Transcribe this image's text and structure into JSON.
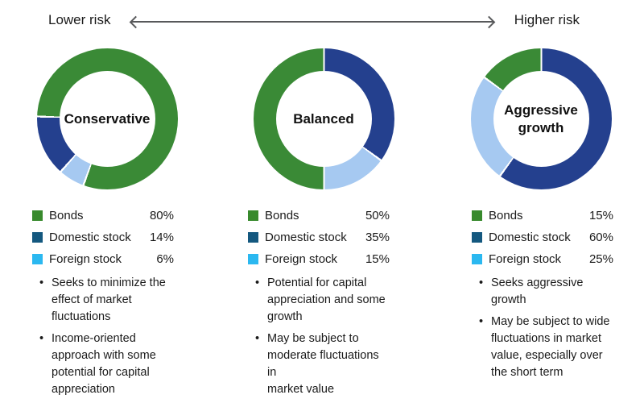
{
  "header": {
    "left_label": "Lower risk",
    "right_label": "Higher risk"
  },
  "bullets_marker": "•",
  "palette": {
    "text": "#1a1a1a",
    "arrow": "#58595b",
    "donut": {
      "bonds": "#3a8a36",
      "domestic": "#24408e",
      "foreign": "#a6c9f1"
    },
    "legend_swatch": {
      "bonds": "#388a2d",
      "domestic": "#14587f",
      "foreign": "#2bb8f0"
    }
  },
  "chart_data": [
    {
      "type": "pie",
      "subtype": "donut",
      "title": "Conservative",
      "categories": [
        "Bonds",
        "Domestic stock",
        "Foreign stock"
      ],
      "values": [
        80,
        14,
        6
      ],
      "legend": [
        {
          "key": "bonds",
          "label": "Bonds",
          "value": "80%"
        },
        {
          "key": "domestic",
          "label": "Domestic stock",
          "value": "14%"
        },
        {
          "key": "foreign",
          "label": "Foreign stock",
          "value": "6%"
        }
      ],
      "start_angle_deg_cw_from_top": 200,
      "clockwise_segments": [
        {
          "key": "foreign",
          "pct": 6
        },
        {
          "key": "domestic",
          "pct": 14
        },
        {
          "key": "bonds",
          "pct": 80
        }
      ],
      "bullets": [
        "Seeks to minimize the\neffect of market\nfluctuations",
        "Income-oriented\napproach with some\npotential for capital\nappreciation"
      ]
    },
    {
      "type": "pie",
      "subtype": "donut",
      "title": "Balanced",
      "categories": [
        "Bonds",
        "Domestic stock",
        "Foreign stock"
      ],
      "values": [
        50,
        35,
        15
      ],
      "legend": [
        {
          "key": "bonds",
          "label": "Bonds",
          "value": "50%"
        },
        {
          "key": "domestic",
          "label": "Domestic stock",
          "value": "35%"
        },
        {
          "key": "foreign",
          "label": "Foreign stock",
          "value": "15%"
        }
      ],
      "start_angle_deg_cw_from_top": 0,
      "clockwise_segments": [
        {
          "key": "domestic",
          "pct": 35
        },
        {
          "key": "foreign",
          "pct": 15
        },
        {
          "key": "bonds",
          "pct": 50
        }
      ],
      "bullets": [
        "Potential for capital\nappreciation and some\ngrowth",
        "May be subject to\nmoderate fluctuations in\nmarket value"
      ]
    },
    {
      "type": "pie",
      "subtype": "donut",
      "title": "Aggressive growth",
      "categories": [
        "Bonds",
        "Domestic stock",
        "Foreign stock"
      ],
      "values": [
        15,
        60,
        25
      ],
      "legend": [
        {
          "key": "bonds",
          "label": "Bonds",
          "value": "15%"
        },
        {
          "key": "domestic",
          "label": "Domestic stock",
          "value": "60%"
        },
        {
          "key": "foreign",
          "label": "Foreign stock",
          "value": "25%"
        }
      ],
      "start_angle_deg_cw_from_top": 0,
      "clockwise_segments": [
        {
          "key": "domestic",
          "pct": 60
        },
        {
          "key": "foreign",
          "pct": 25
        },
        {
          "key": "bonds",
          "pct": 15
        }
      ],
      "bullets": [
        "Seeks aggressive growth",
        "May be subject to wide\nfluctuations in market\nvalue, especially over\nthe short term"
      ]
    }
  ]
}
